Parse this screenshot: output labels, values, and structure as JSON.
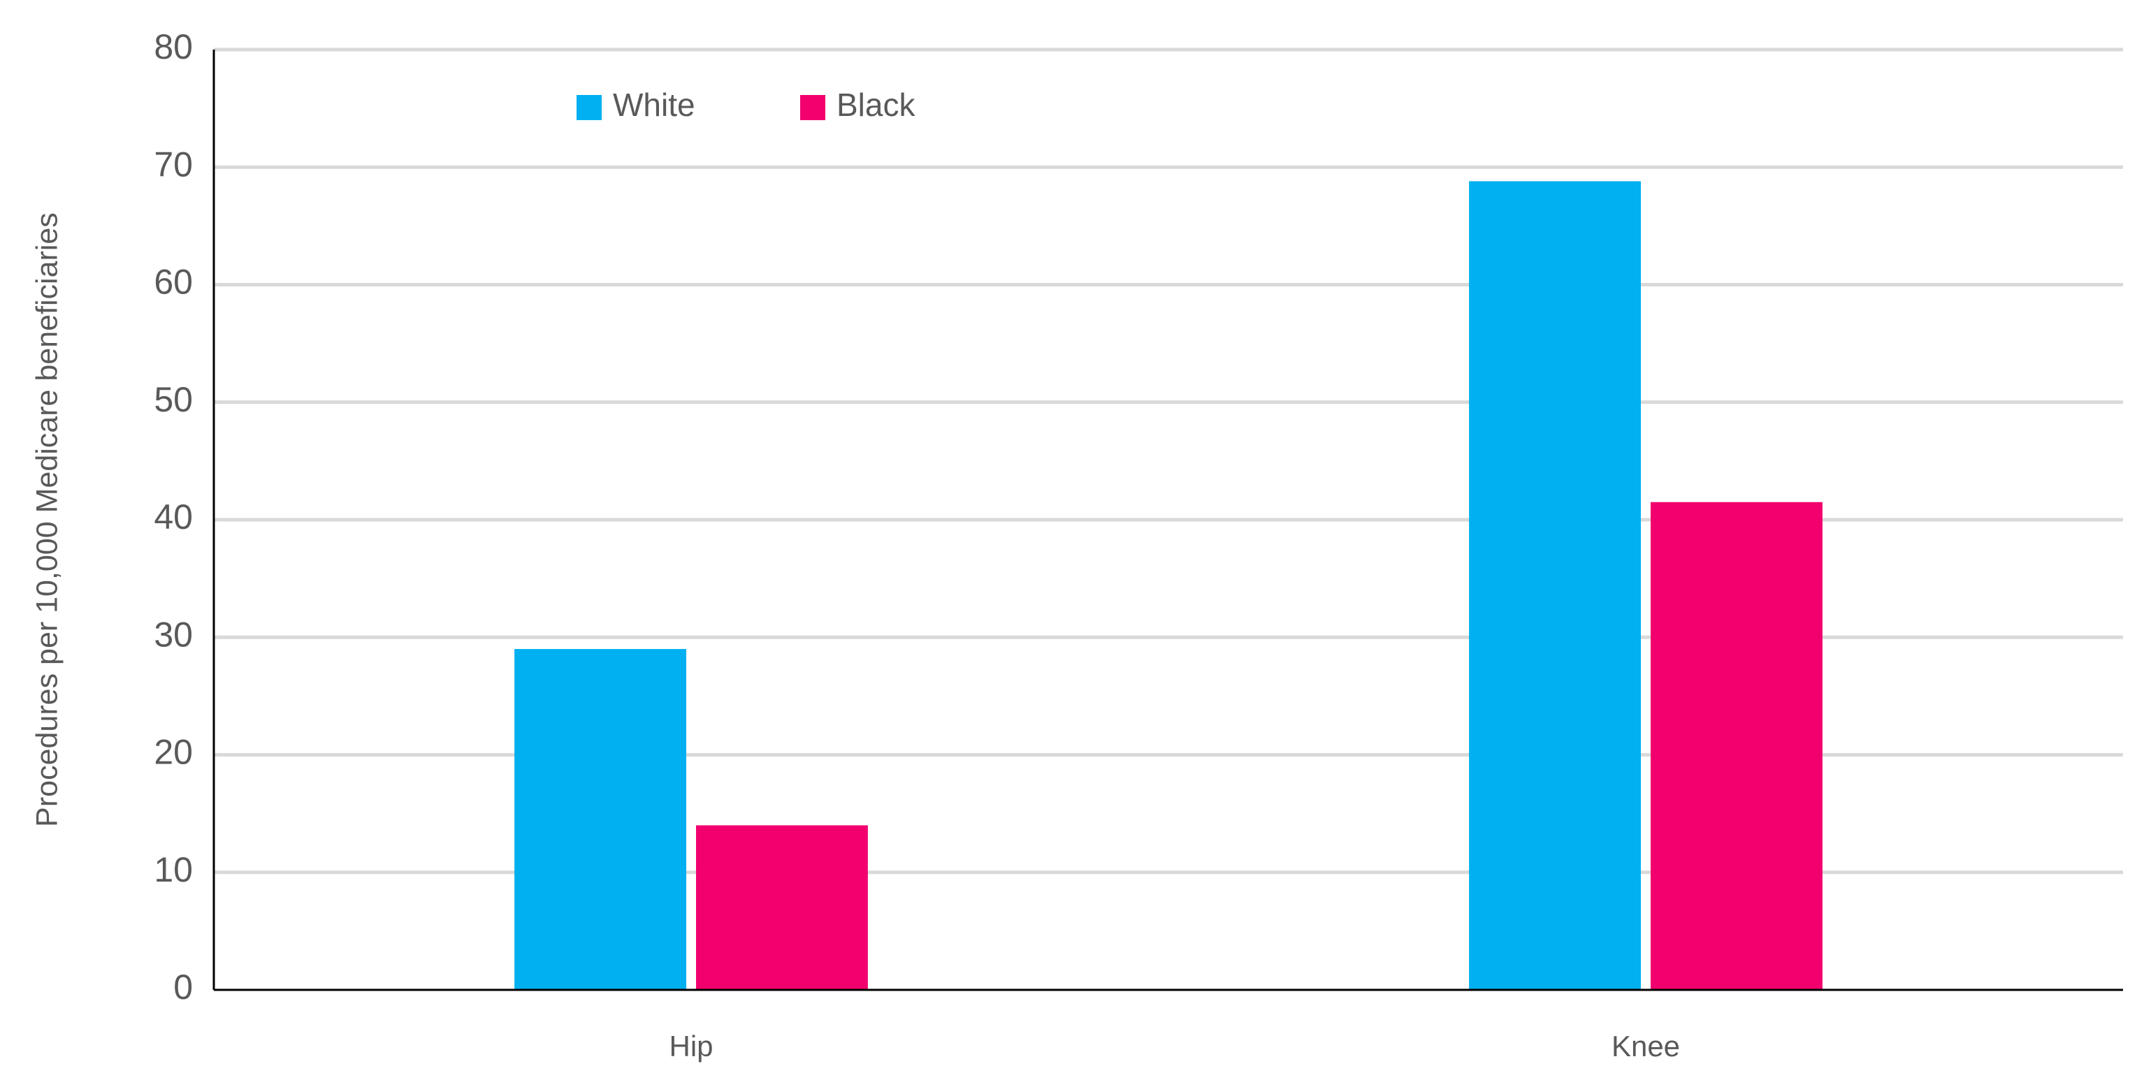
{
  "chart_data": {
    "type": "bar",
    "y_label": "Procedures per 10,000 Medicare beneficiaries",
    "categories": [
      "Hip",
      "Knee"
    ],
    "series": [
      {
        "name": "White",
        "color": "#00b0f0",
        "values": [
          29,
          68.8
        ]
      },
      {
        "name": "Black",
        "color": "#f2006e",
        "values": [
          14,
          41.5
        ]
      }
    ],
    "ylim": [
      0,
      80
    ],
    "yticks": [
      0,
      10,
      20,
      30,
      40,
      50,
      60,
      70,
      80
    ],
    "grid": true,
    "legend": "top-left"
  }
}
